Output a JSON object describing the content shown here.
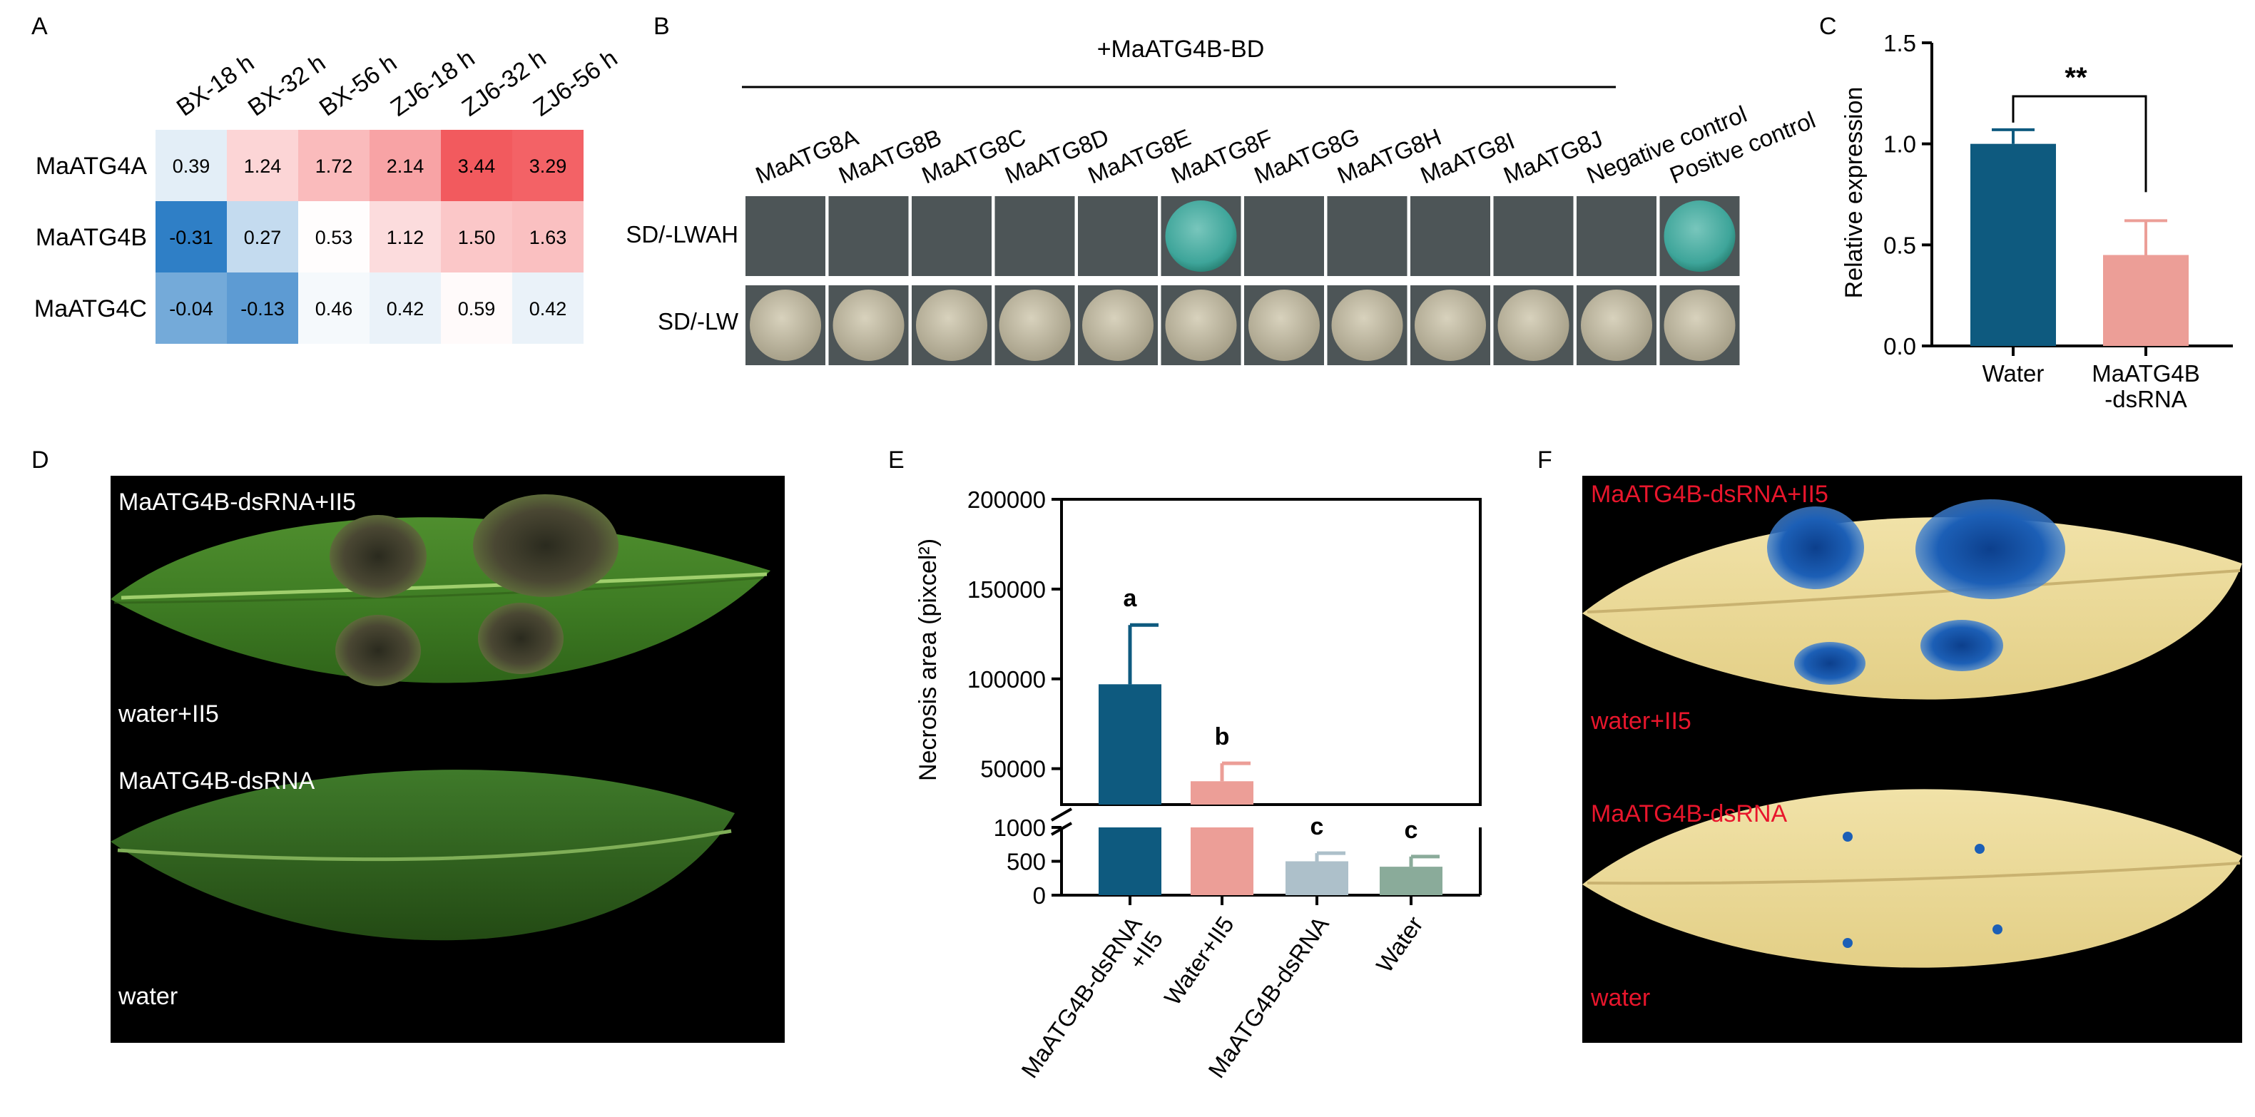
{
  "panels": {
    "A": "A",
    "B": "B",
    "C": "C",
    "D": "D",
    "E": "E",
    "F": "F"
  },
  "chart_data": [
    {
      "type": "heatmap",
      "panel": "A",
      "columns": [
        "BX-18 h",
        "BX-32 h",
        "BX-56 h",
        "ZJ6-18 h",
        "ZJ6-32 h",
        "ZJ6-56 h"
      ],
      "rows": [
        "MaATG4A",
        "MaATG4B",
        "MaATG4C"
      ],
      "values": [
        [
          0.39,
          1.24,
          1.72,
          2.14,
          3.44,
          3.29
        ],
        [
          -0.31,
          0.27,
          0.53,
          1.12,
          1.5,
          1.63
        ],
        [
          -0.04,
          -0.13,
          0.46,
          0.42,
          0.59,
          0.42
        ]
      ],
      "labels": [
        [
          "0.39",
          "1.24",
          "1.72",
          "2.14",
          "3.44",
          "3.29"
        ],
        [
          "-0.31",
          "0.27",
          "0.53",
          "1.12",
          "1.50",
          "1.63"
        ],
        [
          "-0.04",
          "-0.13",
          "0.46",
          "0.42",
          "0.59",
          "0.42"
        ]
      ],
      "colors": {
        "low": "#2f7fc6",
        "mid": "#ffffff",
        "high": "#f25a5e"
      }
    },
    {
      "type": "table",
      "panel": "B",
      "title": "+MaATG4B-BD",
      "columns": [
        "MaATG8A",
        "MaATG8B",
        "MaATG8C",
        "MaATG8D",
        "MaATG8E",
        "MaATG8F",
        "MaATG8G",
        "MaATG8H",
        "MaATG8I",
        "MaATG8J",
        "Negative control",
        "Positve control"
      ],
      "rows": [
        "SD/-LWAH",
        "SD/-LW"
      ],
      "growth_lwah": [
        0,
        0,
        0,
        0,
        0,
        1,
        0,
        0,
        0,
        0,
        0,
        1
      ],
      "growth_lw": [
        1,
        1,
        1,
        1,
        1,
        1,
        1,
        1,
        1,
        1,
        1,
        1
      ]
    },
    {
      "type": "bar",
      "panel": "C",
      "categories": [
        "Water",
        "MaATG4B\n-dsRNA"
      ],
      "values": [
        1.0,
        0.45
      ],
      "errors": [
        0.07,
        0.17
      ],
      "ylabel": "Relative expression",
      "ylim": [
        0,
        1.5
      ],
      "yticks": [
        "0.0",
        "0.5",
        "1.0",
        "1.5"
      ],
      "significance": "**",
      "colors": [
        "#0e5a7f",
        "#ec9e97"
      ]
    },
    {
      "type": "bar",
      "panel": "E",
      "categories": [
        "MaATG4B-dsRNA\n+II5",
        "Water+II5",
        "MaATG4B-dsRNA",
        "Water"
      ],
      "values": [
        97000,
        43000,
        500,
        420
      ],
      "errors": [
        33000,
        10000,
        120,
        150
      ],
      "letters": [
        "a",
        "b",
        "c",
        "c"
      ],
      "ylabel": "Necrosis area (pixcel²)",
      "upper_ticks": [
        "50000",
        "100000",
        "150000",
        "200000"
      ],
      "lower_ticks": [
        "0",
        "500",
        "1000"
      ],
      "axis_break": [
        1000,
        30000
      ],
      "colors": [
        "#0e5a7f",
        "#ec9e97",
        "#adc0ca",
        "#8aab9a"
      ]
    }
  ],
  "photo_d": {
    "labels": [
      "MaATG4B-dsRNA+II5",
      "water+II5",
      "MaATG4B-dsRNA",
      "water"
    ]
  },
  "photo_f": {
    "labels": [
      "MaATG4B-dsRNA+II5",
      "water+II5",
      "MaATG4B-dsRNA",
      "water"
    ]
  }
}
